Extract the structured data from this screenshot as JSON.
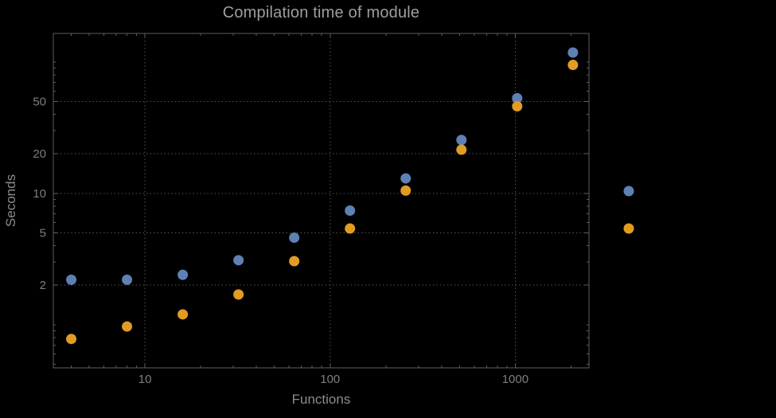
{
  "colors": {
    "background": "#000000",
    "frame": "#5e5e5e",
    "grid": "#545454",
    "title_text": "#9e9e9e",
    "tick_text": "#7e7e7e",
    "axis_label_text": "#8c8c8c",
    "series_blue": "#5e81b5",
    "series_orange": "#e19c24"
  },
  "chart_data": {
    "type": "scatter",
    "title": "Compilation time of module",
    "xlabel": "Functions",
    "ylabel": "Seconds",
    "xscale": "log",
    "yscale": "log",
    "xlim": [
      3.2,
      2500
    ],
    "ylim": [
      0.47,
      165
    ],
    "grid": "dotted",
    "x": [
      4,
      8,
      16,
      32,
      64,
      128,
      256,
      512,
      1024,
      2048
    ],
    "series": [
      {
        "name": "blue",
        "color": "#5e81b5",
        "values": [
          2.2,
          2.2,
          2.4,
          3.1,
          4.6,
          7.4,
          13,
          25.5,
          53,
          118
        ]
      },
      {
        "name": "orange",
        "color": "#e19c24",
        "values": [
          0.78,
          0.97,
          1.2,
          1.7,
          3.05,
          5.4,
          10.5,
          21.5,
          46,
          95
        ]
      }
    ],
    "xticks": {
      "values": [
        10,
        100,
        1000
      ],
      "labels": [
        "10",
        "100",
        "1000"
      ]
    },
    "yticks": {
      "values": [
        2,
        5,
        10,
        20,
        50
      ],
      "labels": [
        "2",
        "5",
        "10",
        "20",
        "50"
      ]
    },
    "legend": {
      "position": "right-outside",
      "markers": [
        {
          "color": "#5e81b5",
          "label": ""
        },
        {
          "color": "#e19c24",
          "label": ""
        }
      ]
    }
  }
}
